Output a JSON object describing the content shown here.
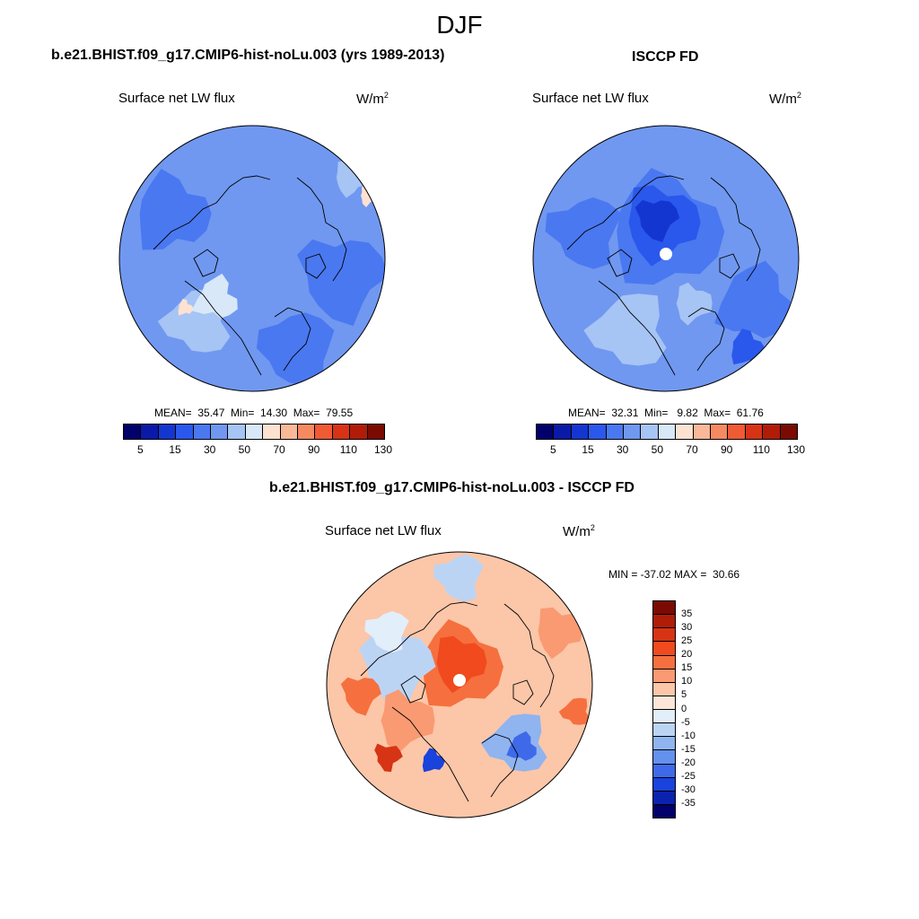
{
  "title": "DJF",
  "panels": {
    "model": {
      "title": "b.e21.BHIST.f09_g17.CMIP6-hist-noLu.003 (yrs 1989-2013)",
      "field": "Surface net LW flux",
      "units": "W/m",
      "units_sup": "2",
      "stats": "MEAN=  35.47  Min=  14.30  Max=  79.55",
      "mean": 35.47,
      "min": 14.3,
      "max": 79.55
    },
    "obs": {
      "title": "ISCCP FD",
      "field": "Surface net LW flux",
      "units": "W/m",
      "units_sup": "2",
      "stats": "MEAN=  32.31  Min=   9.82  Max=  61.76",
      "mean": 32.31,
      "min": 9.82,
      "max": 61.76
    },
    "diff": {
      "title": "b.e21.BHIST.f09_g17.CMIP6-hist-noLu.003 - ISCCP FD",
      "field": "Surface net LW flux",
      "units": "W/m",
      "units_sup": "2",
      "stats": "MIN = -37.02 MAX =  30.66",
      "min": -37.02,
      "max": 30.66
    }
  },
  "colorbar_abs": {
    "colors": [
      "#02006b",
      "#0a1aa8",
      "#1436d0",
      "#2a58ec",
      "#4a78f0",
      "#7098f0",
      "#a6c4f4",
      "#d8e8f8",
      "#fde2d2",
      "#f9b898",
      "#f58a62",
      "#f05a34",
      "#d63414",
      "#b01c08",
      "#7a0a02"
    ],
    "tick_labels": [
      "5",
      "15",
      "30",
      "50",
      "70",
      "90",
      "110",
      "130"
    ]
  },
  "colorbar_diff": {
    "colors": [
      "#7a0a02",
      "#b01c08",
      "#d63414",
      "#f04a1e",
      "#f5703e",
      "#f99a72",
      "#fcc6a8",
      "#fde6d8",
      "#e2eefa",
      "#bcd4f4",
      "#8fb4f0",
      "#6490ee",
      "#3e6aea",
      "#1a42dc",
      "#0a22ae",
      "#02006b"
    ],
    "tick_labels": [
      "35",
      "30",
      "25",
      "20",
      "15",
      "10",
      "5",
      "0",
      "-5",
      "-10",
      "-15",
      "-20",
      "-25",
      "-30",
      "-35"
    ]
  }
}
